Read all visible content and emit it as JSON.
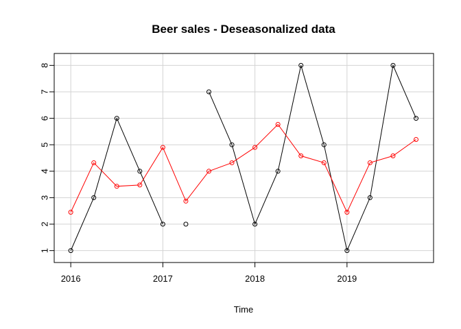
{
  "chart_data": {
    "type": "line",
    "title": "Beer sales - Deseasonalized data",
    "xlabel": "Time",
    "ylabel": "",
    "xlim": [
      2015.82,
      2019.94
    ],
    "ylim": [
      0.55,
      8.45
    ],
    "xticks": [
      2016,
      2017,
      2018,
      2019
    ],
    "yticks": [
      1,
      2,
      3,
      4,
      5,
      6,
      7,
      8
    ],
    "grid": true,
    "series": [
      {
        "color": "#000000",
        "x": [
          2016.0,
          2016.25,
          2016.5,
          2016.75,
          2017.0,
          2017.25,
          2017.5,
          2017.75,
          2018.0,
          2018.25,
          2018.5,
          2018.75,
          2019.0,
          2019.25,
          2019.5,
          2019.75
        ],
        "values": [
          1,
          3,
          6,
          4,
          2,
          null,
          7,
          5,
          2,
          4,
          8,
          5,
          1,
          3,
          8,
          6
        ],
        "isolated_points": [
          {
            "x": 2017.25,
            "y": 2
          }
        ]
      },
      {
        "color": "#ff0000",
        "x": [
          2016.0,
          2016.25,
          2016.5,
          2016.75,
          2017.0,
          2017.25,
          2017.5,
          2017.75,
          2018.0,
          2018.25,
          2018.5,
          2018.75,
          2019.0,
          2019.25,
          2019.5,
          2019.75
        ],
        "values": [
          2.45,
          4.32,
          3.43,
          3.48,
          4.9,
          2.87,
          4.0,
          4.32,
          4.9,
          5.77,
          4.58,
          4.32,
          2.45,
          4.32,
          4.58,
          5.2
        ]
      }
    ]
  }
}
